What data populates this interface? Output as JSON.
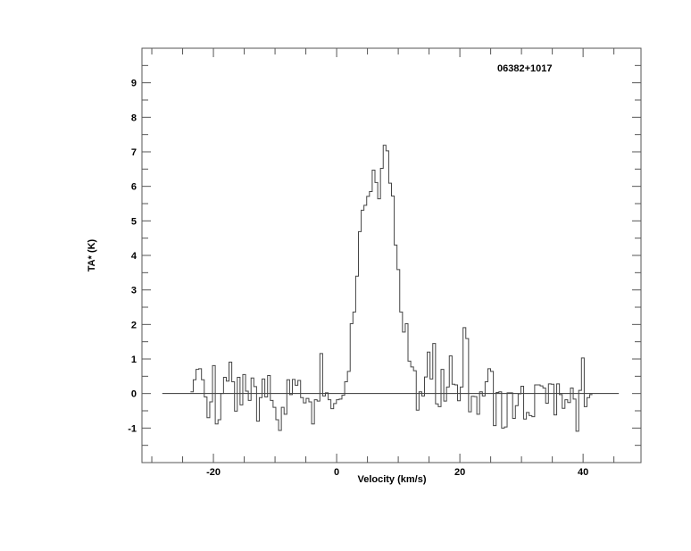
{
  "chart_data": {
    "type": "line",
    "style": "step",
    "title": "06382+1017",
    "title_position": "top-right",
    "xlabel": "Velocity (km/s)",
    "ylabel": "TA* (K)",
    "xlim": [
      -31.6,
      49.4
    ],
    "ylim": [
      -2,
      10
    ],
    "x_ticks_labeled": [
      -20,
      0,
      20,
      40
    ],
    "x_tick_labels": [
      "-20",
      "0",
      "20",
      "40"
    ],
    "x_minor_step": 5,
    "y_ticks_labeled": [
      -1,
      0,
      1,
      2,
      3,
      4,
      5,
      6,
      7,
      8,
      9
    ],
    "y_tick_labels": [
      "-1",
      "0",
      "1",
      "2",
      "3",
      "4",
      "5",
      "6",
      "7",
      "8",
      "9"
    ],
    "y_minor_step": 0.5,
    "grid": false,
    "baseline": {
      "y": 0,
      "x_from": -28.3,
      "x_to": 45.8
    },
    "series": [
      {
        "velocity_first_channel": -23.5,
        "velocity_last_channel": 41.3,
        "values": [
          0.05,
          0.4,
          0.7,
          0.72,
          0.4,
          -0.1,
          -0.7,
          -0.24,
          0.81,
          -0.88,
          -0.76,
          0.0,
          0.47,
          0.36,
          0.91,
          0.34,
          -0.51,
          0.47,
          -0.33,
          0.55,
          0.07,
          -0.2,
          0.45,
          0.2,
          -0.8,
          -0.12,
          0.42,
          -0.1,
          0.52,
          -0.2,
          -0.4,
          -0.76,
          -1.07,
          -0.4,
          -0.6,
          0.4,
          -0.03,
          0.41,
          0.24,
          0.38,
          -0.12,
          -0.27,
          -0.14,
          -0.24,
          -0.88,
          -0.18,
          -0.22,
          1.16,
          -0.07,
          0.02,
          -0.18,
          -0.44,
          -0.29,
          -0.18,
          -0.16,
          -0.05,
          0.34,
          0.64,
          2.02,
          2.36,
          3.4,
          4.69,
          5.31,
          5.45,
          5.71,
          5.85,
          6.47,
          6.11,
          5.64,
          6.52,
          7.19,
          7.03,
          6.09,
          5.72,
          4.3,
          3.59,
          2.36,
          1.78,
          2.02,
          0.94,
          0.77,
          0.66,
          -0.48,
          0.05,
          -0.07,
          0.48,
          1.2,
          0.42,
          1.45,
          -0.3,
          -0.38,
          0.7,
          -0.22,
          0.19,
          1.09,
          0.27,
          0.25,
          -0.21,
          0.19,
          1.91,
          1.59,
          -0.53,
          -0.08,
          -0.09,
          -0.6,
          0.05,
          -0.07,
          0.34,
          0.72,
          0.64,
          -0.93,
          0.03,
          0.05,
          -1.0,
          -0.97,
          0.02,
          0.02,
          -0.72,
          -0.35,
          -0.01,
          0.21,
          -0.74,
          -0.55,
          -0.64,
          -0.67,
          0.25,
          0.25,
          0.22,
          0.16,
          -0.28,
          0.28,
          0.27,
          -0.62,
          0.28,
          -0.03,
          -0.43,
          -0.18,
          -0.26,
          0.16,
          -0.16,
          -1.09,
          0.09,
          1.03,
          -0.38,
          -0.12,
          -0.03
        ],
        "color": "#000000"
      }
    ]
  }
}
